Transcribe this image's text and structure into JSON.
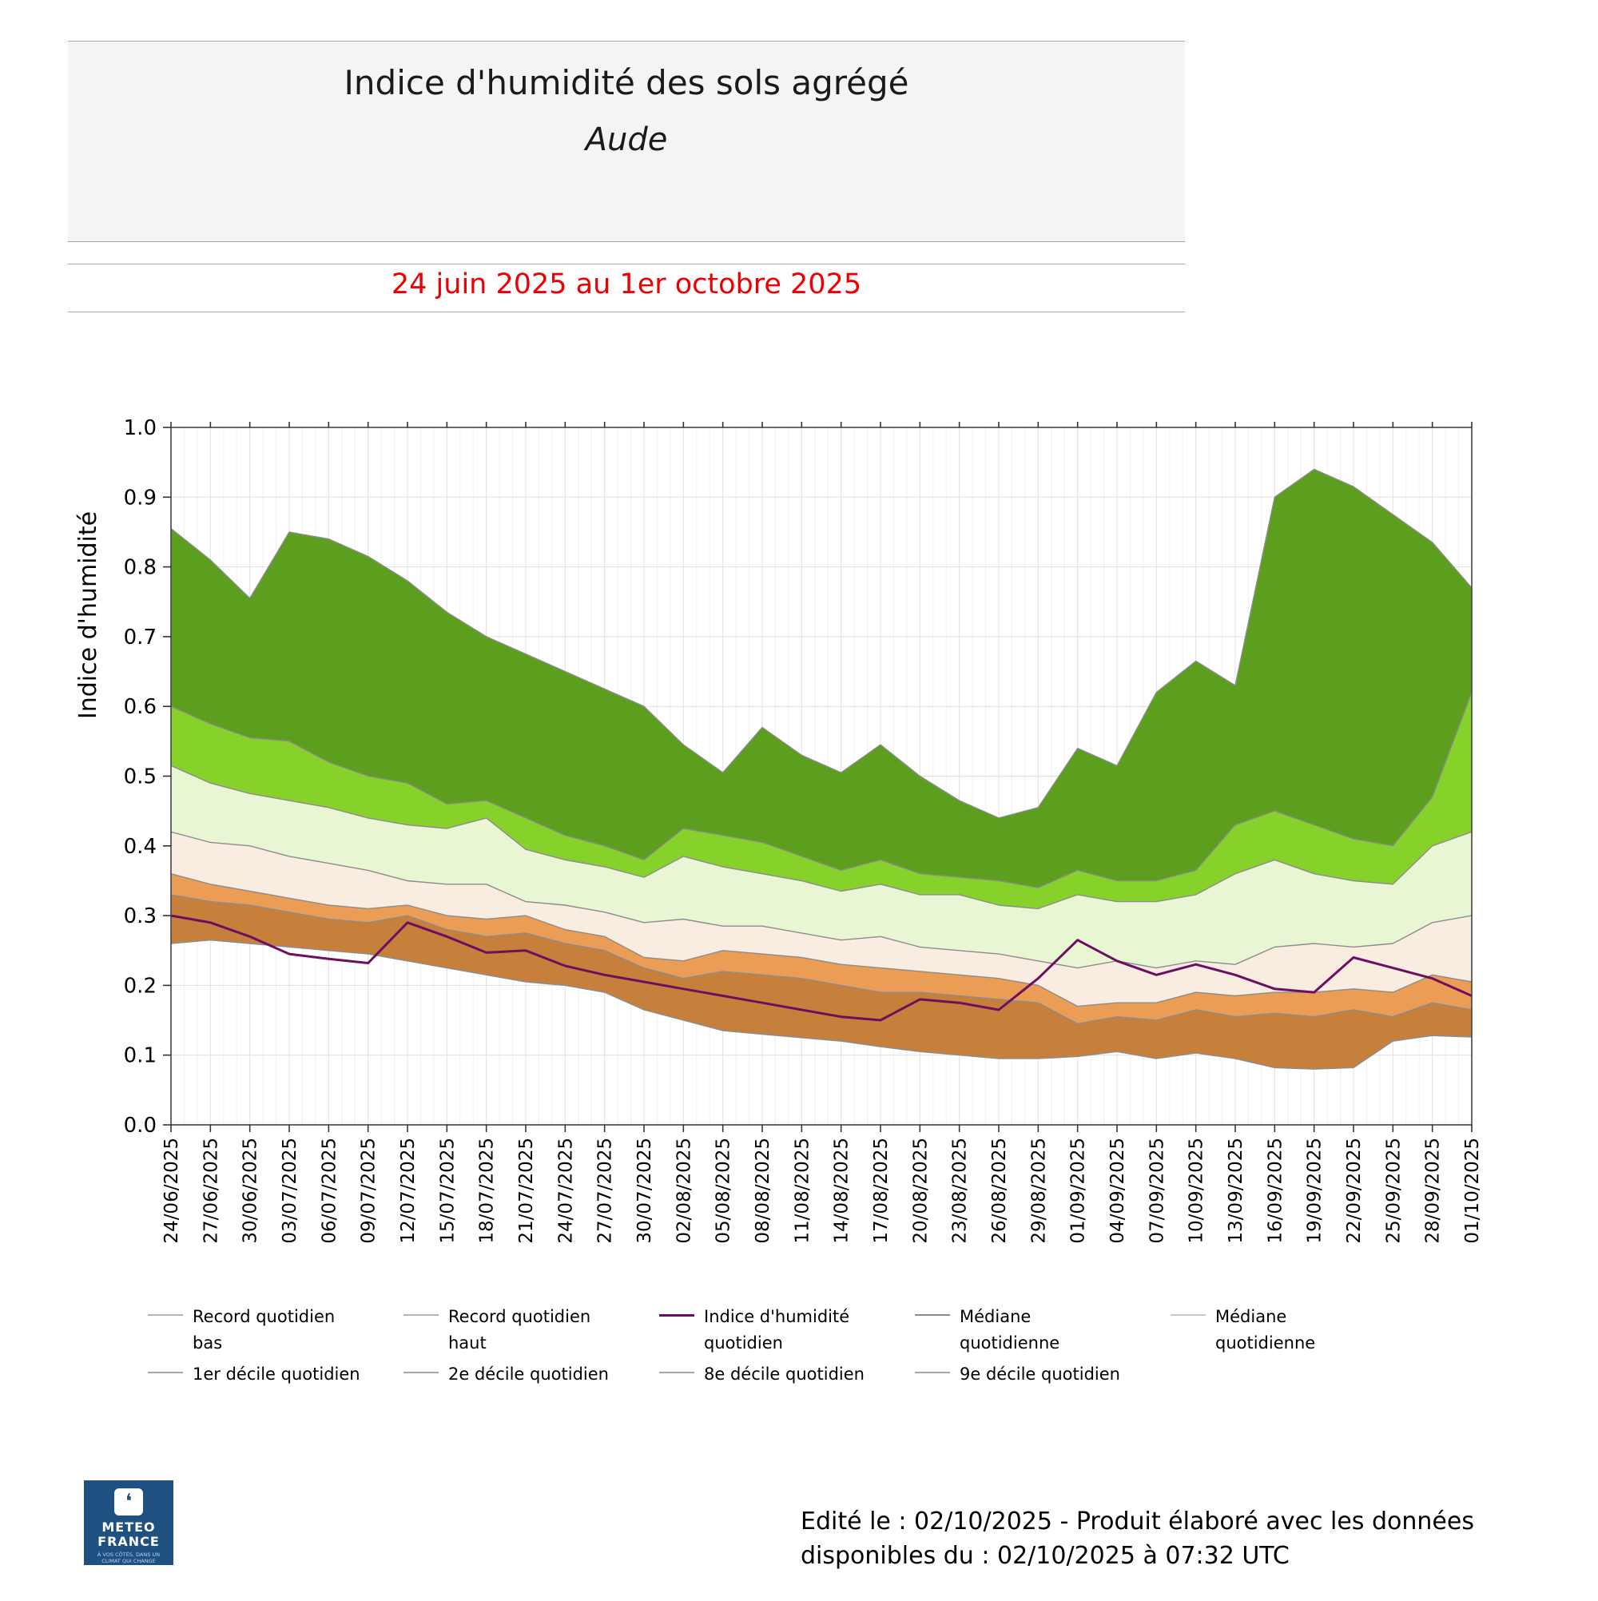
{
  "header": {
    "title": "Indice d'humidité des sols agrégé",
    "subtitle": "Aude",
    "period": "24 juin 2025 au 1er octobre 2025",
    "period_color": "#ee0000"
  },
  "chart_data": {
    "type": "area",
    "title": "Indice d'humidité des sols agrégé - Aude",
    "xlabel": "",
    "ylabel": "Indice d'humidité",
    "ylim": [
      0.0,
      1.0
    ],
    "ytick_step": 0.1,
    "grid": true,
    "x_days_total": 100,
    "x_tick_labels": [
      "24/06/2025",
      "27/06/2025",
      "30/06/2025",
      "03/07/2025",
      "06/07/2025",
      "09/07/2025",
      "12/07/2025",
      "15/07/2025",
      "18/07/2025",
      "21/07/2025",
      "24/07/2025",
      "27/07/2025",
      "30/07/2025",
      "02/08/2025",
      "05/08/2025",
      "08/08/2025",
      "11/08/2025",
      "14/08/2025",
      "17/08/2025",
      "20/08/2025",
      "23/08/2025",
      "26/08/2025",
      "29/08/2025",
      "01/09/2025",
      "04/09/2025",
      "07/09/2025",
      "10/09/2025",
      "13/09/2025",
      "16/09/2025",
      "19/09/2025",
      "22/09/2025",
      "25/09/2025",
      "28/09/2025",
      "01/10/2025"
    ],
    "series": [
      {
        "name": "Record quotidien haut",
        "role": "boundary",
        "values": [
          0.855,
          0.81,
          0.755,
          0.85,
          0.84,
          0.815,
          0.78,
          0.735,
          0.7,
          0.675,
          0.65,
          0.625,
          0.6,
          0.545,
          0.505,
          0.57,
          0.53,
          0.505,
          0.545,
          0.5,
          0.465,
          0.44,
          0.455,
          0.54,
          0.515,
          0.62,
          0.665,
          0.63,
          0.9,
          0.94,
          0.915,
          0.875,
          0.835,
          0.77
        ]
      },
      {
        "name": "9e décile quotidien",
        "role": "boundary",
        "values": [
          0.6,
          0.575,
          0.555,
          0.55,
          0.52,
          0.5,
          0.49,
          0.46,
          0.465,
          0.44,
          0.415,
          0.4,
          0.38,
          0.425,
          0.415,
          0.405,
          0.385,
          0.365,
          0.38,
          0.36,
          0.355,
          0.35,
          0.34,
          0.365,
          0.35,
          0.35,
          0.365,
          0.43,
          0.45,
          0.43,
          0.41,
          0.4,
          0.47,
          0.62
        ]
      },
      {
        "name": "8e décile quotidien",
        "role": "boundary",
        "values": [
          0.515,
          0.49,
          0.475,
          0.465,
          0.455,
          0.44,
          0.43,
          0.425,
          0.44,
          0.395,
          0.38,
          0.37,
          0.355,
          0.385,
          0.37,
          0.36,
          0.35,
          0.335,
          0.345,
          0.33,
          0.33,
          0.315,
          0.31,
          0.33,
          0.32,
          0.32,
          0.33,
          0.36,
          0.38,
          0.36,
          0.35,
          0.345,
          0.4,
          0.42
        ]
      },
      {
        "name": "Médiane quotidienne",
        "role": "boundary",
        "values": [
          0.42,
          0.405,
          0.4,
          0.385,
          0.375,
          0.365,
          0.35,
          0.345,
          0.345,
          0.32,
          0.315,
          0.305,
          0.29,
          0.295,
          0.285,
          0.285,
          0.275,
          0.265,
          0.27,
          0.255,
          0.25,
          0.245,
          0.235,
          0.225,
          0.235,
          0.225,
          0.235,
          0.23,
          0.255,
          0.26,
          0.255,
          0.26,
          0.29,
          0.3
        ]
      },
      {
        "name": "2e décile quotidien",
        "role": "boundary",
        "values": [
          0.36,
          0.345,
          0.335,
          0.325,
          0.315,
          0.31,
          0.315,
          0.3,
          0.295,
          0.3,
          0.28,
          0.27,
          0.24,
          0.235,
          0.25,
          0.245,
          0.24,
          0.23,
          0.225,
          0.22,
          0.215,
          0.21,
          0.2,
          0.17,
          0.175,
          0.175,
          0.19,
          0.185,
          0.19,
          0.19,
          0.195,
          0.19,
          0.215,
          0.205
        ]
      },
      {
        "name": "1er décile quotidien",
        "role": "boundary",
        "values": [
          0.33,
          0.32,
          0.315,
          0.305,
          0.295,
          0.29,
          0.3,
          0.28,
          0.27,
          0.275,
          0.26,
          0.25,
          0.225,
          0.21,
          0.22,
          0.215,
          0.21,
          0.2,
          0.19,
          0.19,
          0.185,
          0.18,
          0.175,
          0.145,
          0.155,
          0.15,
          0.165,
          0.155,
          0.16,
          0.155,
          0.165,
          0.155,
          0.175,
          0.165
        ]
      },
      {
        "name": "Record quotidien bas",
        "role": "boundary",
        "values": [
          0.26,
          0.265,
          0.26,
          0.255,
          0.25,
          0.245,
          0.235,
          0.225,
          0.215,
          0.205,
          0.2,
          0.19,
          0.165,
          0.15,
          0.135,
          0.13,
          0.125,
          0.12,
          0.112,
          0.105,
          0.1,
          0.095,
          0.095,
          0.098,
          0.105,
          0.095,
          0.103,
          0.095,
          0.082,
          0.08,
          0.082,
          0.12,
          0.128,
          0.126
        ]
      },
      {
        "name": "Indice d'humidité quotidien",
        "role": "line",
        "color": "#6e0e60",
        "values": [
          0.3,
          0.29,
          0.27,
          0.245,
          0.238,
          0.232,
          0.29,
          0.27,
          0.247,
          0.25,
          0.228,
          0.215,
          0.205,
          0.195,
          0.185,
          0.175,
          0.165,
          0.155,
          0.15,
          0.18,
          0.175,
          0.165,
          0.21,
          0.265,
          0.235,
          0.215,
          0.23,
          0.215,
          0.195,
          0.19,
          0.24,
          0.225,
          0.21,
          0.185
        ]
      }
    ],
    "bands": [
      {
        "label": "9e décile → record haut",
        "upper": 0,
        "lower": 1,
        "fill": "#5c9e1d"
      },
      {
        "label": "8e → 9e décile",
        "upper": 1,
        "lower": 2,
        "fill": "#87d22a"
      },
      {
        "label": "médiane → 8e décile",
        "upper": 2,
        "lower": 3,
        "fill": "#e9f6d3"
      },
      {
        "label": "2e décile → médiane",
        "upper": 3,
        "lower": 4,
        "fill": "#f9ece1"
      },
      {
        "label": "1er → 2e décile",
        "upper": 4,
        "lower": 5,
        "fill": "#eb9d56"
      },
      {
        "label": "record bas → 1er décile",
        "upper": 5,
        "lower": 6,
        "fill": "#c6803c"
      }
    ],
    "boundary_stroke": "#8c8c8c",
    "legend_position": "bottom"
  },
  "legend": {
    "rows": [
      [
        {
          "lines": [
            "Record quotidien",
            "bas"
          ],
          "color": "#b3b3b3",
          "weight": 2
        },
        {
          "lines": [
            "Record quotidien",
            "haut"
          ],
          "color": "#b3b3b3",
          "weight": 2
        },
        {
          "lines": [
            "Indice d'humidité",
            "quotidien"
          ],
          "color": "#6e0e60",
          "weight": 3
        },
        {
          "lines": [
            "Médiane",
            "quotidienne"
          ],
          "color": "#8c8c8c",
          "weight": 2
        },
        {
          "lines": [
            "Médiane",
            "quotidienne"
          ],
          "color": "#c9c9c9",
          "weight": 2
        }
      ],
      [
        {
          "lines": [
            "1er décile quotidien"
          ],
          "color": "#a6a6a6",
          "weight": 2
        },
        {
          "lines": [
            "2e décile quotidien"
          ],
          "color": "#a6a6a6",
          "weight": 2
        },
        {
          "lines": [
            "8e décile quotidien"
          ],
          "color": "#a6a6a6",
          "weight": 2
        },
        {
          "lines": [
            "9e décile quotidien"
          ],
          "color": "#a6a6a6",
          "weight": 2
        }
      ]
    ]
  },
  "footer": {
    "line1": "Edité le : 02/10/2025 - Produit élaboré avec les données",
    "line2": "disponibles du : 02/10/2025 à 07:32 UTC"
  },
  "logo": {
    "name_line1": "METEO",
    "name_line2": "FRANCE",
    "tagline_line1": "À VOS CÔTÉS, DANS UN",
    "tagline_line2": "CLIMAT QUI CHANGE",
    "bg_color": "#1f5082"
  }
}
